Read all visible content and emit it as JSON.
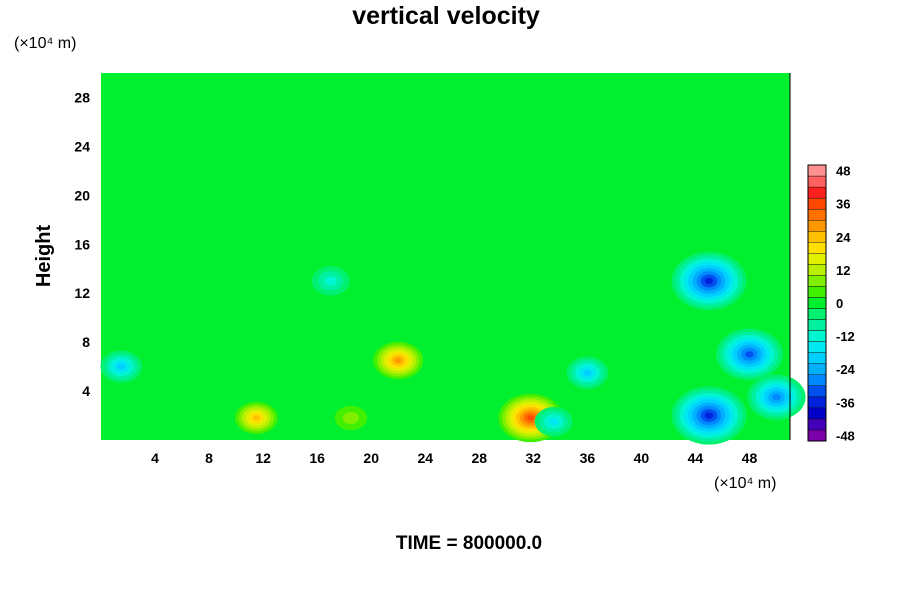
{
  "chart_data": {
    "type": "heatmap",
    "title": "vertical velocity",
    "ylabel": "Height",
    "y_unit": "(×10⁴ m)",
    "x_unit": "(×10⁴ m)",
    "xlim": [
      0,
      51
    ],
    "ylim": [
      0,
      30
    ],
    "x_ticks": [
      4,
      8,
      12,
      16,
      20,
      24,
      28,
      32,
      36,
      40,
      44,
      48
    ],
    "y_ticks": [
      4,
      8,
      12,
      16,
      20,
      24,
      28
    ],
    "colorbar": {
      "min": -48,
      "max": 48,
      "step": 4,
      "ticks": [
        48,
        36,
        24,
        12,
        0,
        -12,
        -24,
        -36,
        -48
      ],
      "colors": {
        "-48": "#7a00a8",
        "-44": "#4400b8",
        "-40": "#0000c8",
        "-36": "#0022dd",
        "-32": "#0050f0",
        "-28": "#0088ff",
        "-24": "#00b0ff",
        "-20": "#00d0ff",
        "-16": "#00e8f0",
        "-12": "#00f5d0",
        "-8": "#00f0a0",
        "-4": "#00f070",
        "0": "#00f030",
        "4": "#40f000",
        "8": "#80f000",
        "12": "#b8f000",
        "16": "#e0f000",
        "20": "#ffe000",
        "24": "#ffc000",
        "28": "#ff9800",
        "32": "#ff7000",
        "36": "#ff4800",
        "40": "#ff2020",
        "44": "#ff6060",
        "48": "#ff9090"
      }
    },
    "background_value": 0,
    "features": [
      {
        "kind": "updraft",
        "x": 22,
        "y": 6.5,
        "peak": 28
      },
      {
        "kind": "updraft",
        "x": 11.5,
        "y": 1.8,
        "peak": 24
      },
      {
        "kind": "updraft",
        "x": 31.8,
        "y": 1.8,
        "peak": 36
      },
      {
        "kind": "updraft",
        "x": 18.5,
        "y": 1.8,
        "peak": 8
      },
      {
        "kind": "downdraft",
        "x": 1.5,
        "y": 6,
        "peak": -20
      },
      {
        "kind": "downdraft",
        "x": 36,
        "y": 5.5,
        "peak": -20
      },
      {
        "kind": "downdraft",
        "x": 33.5,
        "y": 1.5,
        "peak": -16
      },
      {
        "kind": "downdraft",
        "x": 45,
        "y": 13,
        "peak": -36
      },
      {
        "kind": "downdraft",
        "x": 48,
        "y": 7,
        "peak": -32
      },
      {
        "kind": "downdraft",
        "x": 45,
        "y": 2,
        "peak": -36
      },
      {
        "kind": "downdraft",
        "x": 50,
        "y": 3.5,
        "peak": -28
      },
      {
        "kind": "downdraft",
        "x": 17,
        "y": 13,
        "peak": -12
      }
    ]
  },
  "footer": {
    "time_label": "TIME = 800000.0"
  }
}
